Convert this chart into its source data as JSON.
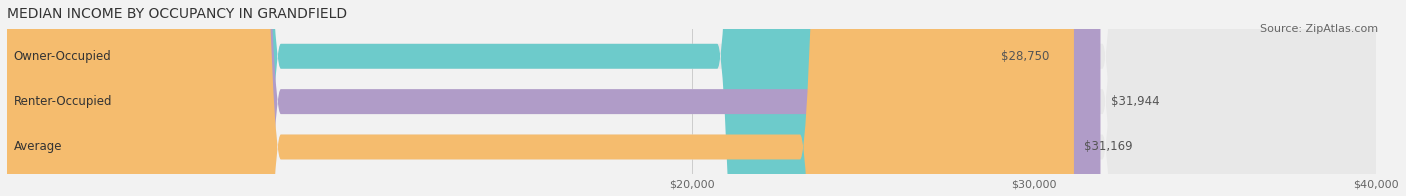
{
  "title": "MEDIAN INCOME BY OCCUPANCY IN GRANDFIELD",
  "source": "Source: ZipAtlas.com",
  "categories": [
    "Owner-Occupied",
    "Renter-Occupied",
    "Average"
  ],
  "values": [
    28750,
    31944,
    31169
  ],
  "bar_colors": [
    "#6dcbcb",
    "#b09cc8",
    "#f5bc6e"
  ],
  "bar_bg_color": "#e8e8e8",
  "value_labels": [
    "$28,750",
    "$31,944",
    "$31,169"
  ],
  "xlim": [
    0,
    40000
  ],
  "xticks": [
    20000,
    30000,
    40000
  ],
  "xtick_labels": [
    "$20,000",
    "$30,000",
    "$40,000"
  ],
  "figsize": [
    14.06,
    1.96
  ],
  "dpi": 100,
  "bg_color": "#f2f2f2",
  "title_fontsize": 10,
  "bar_label_fontsize": 8.5,
  "value_fontsize": 8.5,
  "axis_fontsize": 8,
  "source_fontsize": 8
}
